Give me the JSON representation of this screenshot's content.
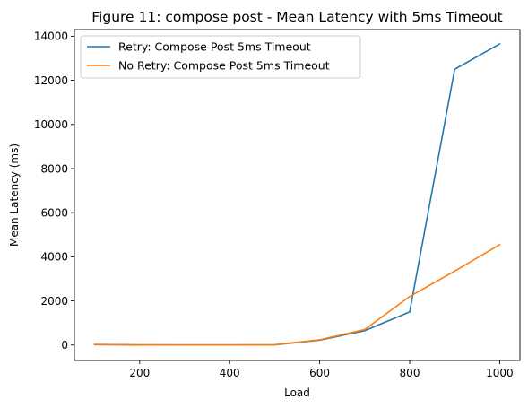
{
  "chart_data": {
    "type": "line",
    "title": "Figure 11: compose post - Mean Latency with 5ms Timeout",
    "xlabel": "Load",
    "ylabel": "Mean Latency (ms)",
    "xlim": [
      55,
      1045
    ],
    "ylim": [
      -700,
      14300
    ],
    "xticks": [
      200,
      400,
      600,
      800,
      1000
    ],
    "yticks": [
      0,
      2000,
      4000,
      6000,
      8000,
      10000,
      12000,
      14000
    ],
    "grid": false,
    "legend_position": "top-left",
    "x": [
      100,
      200,
      300,
      400,
      500,
      600,
      700,
      800,
      900,
      1000
    ],
    "series": [
      {
        "name": "Retry: Compose Post 5ms Timeout",
        "color": "#1f77b4",
        "values": [
          20,
          5,
          5,
          5,
          10,
          220,
          650,
          1500,
          12500,
          13650
        ]
      },
      {
        "name": "No Retry: Compose Post 5ms Timeout",
        "color": "#ff7f0e",
        "values": [
          30,
          10,
          5,
          5,
          15,
          240,
          700,
          2200,
          3350,
          4550
        ]
      }
    ]
  }
}
